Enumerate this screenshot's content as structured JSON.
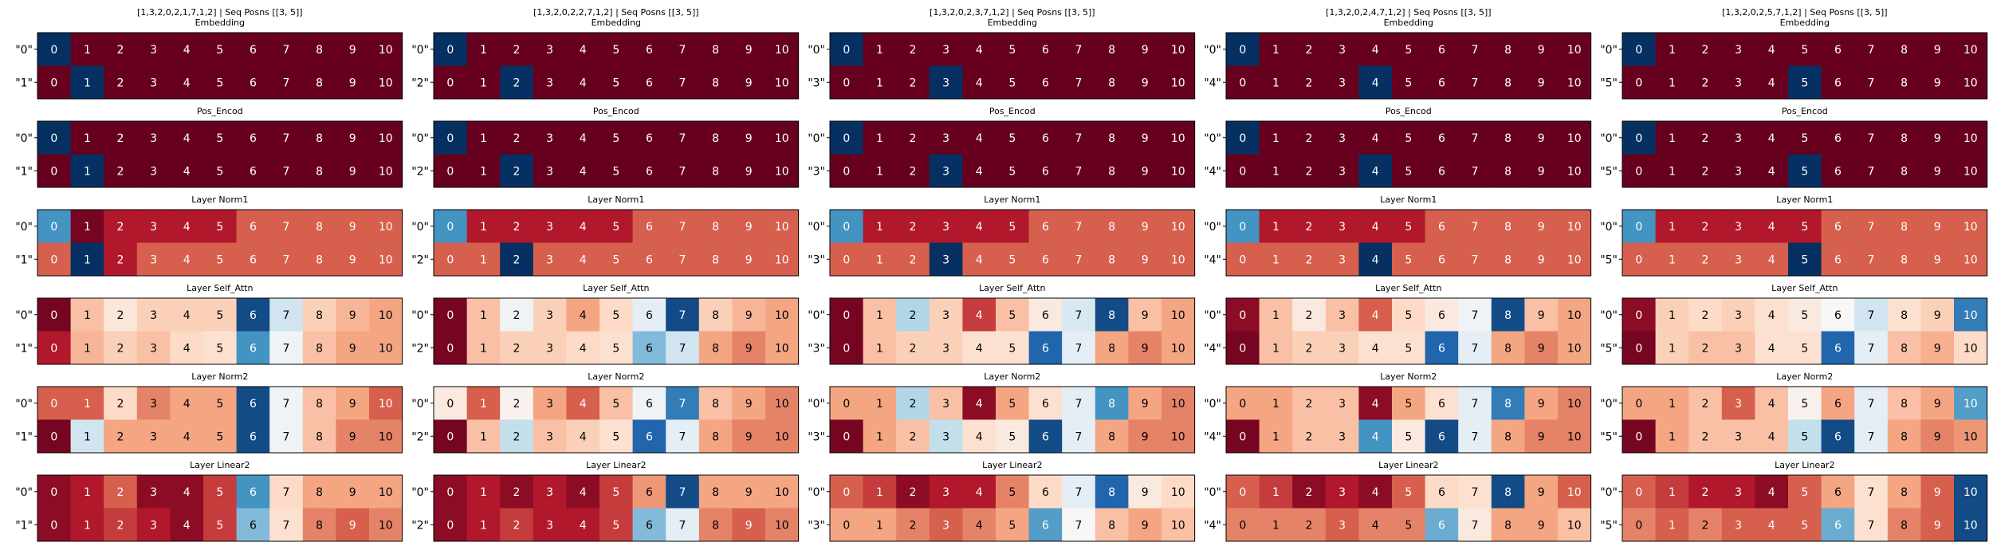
{
  "figure": {
    "layer_titles": [
      "Embedding",
      "Pos_Encod",
      "Layer Norm1",
      "Layer Self_Attn",
      "Layer Norm2",
      "Layer Linear2"
    ],
    "colormap": "RdBu",
    "colormap_stops": [
      "#67001f",
      "#b2182b",
      "#d6604d",
      "#f4a582",
      "#fddbc7",
      "#f7f7f7",
      "#d1e5f0",
      "#92c5de",
      "#4393c3",
      "#2166ac",
      "#053061"
    ]
  },
  "chart_data": [
    {
      "type": "heatmap",
      "title": "[1,3,2,0,2,1,7,1,2] | Seq Posns [[3, 5]]",
      "columns": [
        "0",
        "1",
        "2",
        "3",
        "4",
        "5",
        "6",
        "7",
        "8",
        "9",
        "10"
      ],
      "rows": [
        "\"0\"",
        "\"1\""
      ],
      "layers": [
        {
          "name": "Embedding",
          "values": [
            [
              1.0,
              0,
              0,
              0,
              0,
              0,
              0,
              0,
              0,
              0,
              0
            ],
            [
              0,
              1.0,
              0,
              0,
              0,
              0,
              0,
              0,
              0,
              0,
              0
            ]
          ]
        },
        {
          "name": "Pos_Encod",
          "values": [
            [
              1.0,
              0,
              0,
              0,
              0,
              0,
              0,
              0,
              0,
              0,
              0
            ],
            [
              0,
              1.0,
              0,
              0,
              0,
              0,
              0,
              0,
              0,
              0,
              0
            ]
          ]
        },
        {
          "name": "Layer Norm1",
          "values": [
            [
              0.8,
              0.02,
              0.1,
              0.1,
              0.1,
              0.1,
              0.2,
              0.2,
              0.2,
              0.2,
              0.2
            ],
            [
              0.2,
              1.0,
              0.1,
              0.2,
              0.2,
              0.2,
              0.2,
              0.2,
              0.2,
              0.2,
              0.2
            ]
          ]
        },
        {
          "name": "Layer Self_Attn",
          "values": [
            [
              0.02,
              0.35,
              0.44,
              0.38,
              0.38,
              0.38,
              0.95,
              0.6,
              0.38,
              0.33,
              0.3
            ],
            [
              0.1,
              0.33,
              0.38,
              0.35,
              0.4,
              0.42,
              0.8,
              0.52,
              0.35,
              0.3,
              0.3
            ]
          ]
        },
        {
          "name": "Layer Norm2",
          "values": [
            [
              0.2,
              0.2,
              0.4,
              0.25,
              0.3,
              0.3,
              0.95,
              0.52,
              0.35,
              0.3,
              0.2
            ],
            [
              0.02,
              0.6,
              0.3,
              0.3,
              0.3,
              0.3,
              0.95,
              0.52,
              0.35,
              0.25,
              0.25
            ]
          ]
        },
        {
          "name": "Layer Linear2",
          "values": [
            [
              0.05,
              0.1,
              0.2,
              0.05,
              0.05,
              0.15,
              0.8,
              0.4,
              0.3,
              0.3,
              0.3
            ],
            [
              0.05,
              0.1,
              0.15,
              0.1,
              0.05,
              0.15,
              0.72,
              0.42,
              0.25,
              0.2,
              0.25
            ]
          ]
        }
      ]
    },
    {
      "type": "heatmap",
      "title": "[1,3,2,0,2,2,7,1,2] | Seq Posns [[3, 5]]",
      "columns": [
        "0",
        "1",
        "2",
        "3",
        "4",
        "5",
        "6",
        "7",
        "8",
        "9",
        "10"
      ],
      "rows": [
        "\"0\"",
        "\"2\""
      ],
      "layers": [
        {
          "name": "Embedding",
          "values": [
            [
              1.0,
              0,
              0,
              0,
              0,
              0,
              0,
              0,
              0,
              0,
              0
            ],
            [
              0,
              0,
              1.0,
              0,
              0,
              0,
              0,
              0,
              0,
              0,
              0
            ]
          ]
        },
        {
          "name": "Pos_Encod",
          "values": [
            [
              1.0,
              0,
              0,
              0,
              0,
              0,
              0,
              0,
              0,
              0,
              0
            ],
            [
              0,
              0,
              1.0,
              0,
              0,
              0,
              0,
              0,
              0,
              0,
              0
            ]
          ]
        },
        {
          "name": "Layer Norm1",
          "values": [
            [
              0.8,
              0.1,
              0.1,
              0.1,
              0.1,
              0.1,
              0.2,
              0.2,
              0.2,
              0.2,
              0.2
            ],
            [
              0.2,
              0.2,
              1.0,
              0.2,
              0.2,
              0.2,
              0.2,
              0.2,
              0.2,
              0.2,
              0.2
            ]
          ]
        },
        {
          "name": "Layer Self_Attn",
          "values": [
            [
              0.02,
              0.35,
              0.52,
              0.38,
              0.3,
              0.4,
              0.55,
              0.95,
              0.38,
              0.33,
              0.3
            ],
            [
              0.02,
              0.35,
              0.38,
              0.38,
              0.4,
              0.42,
              0.72,
              0.6,
              0.3,
              0.25,
              0.3
            ]
          ]
        },
        {
          "name": "Layer Norm2",
          "values": [
            [
              0.45,
              0.2,
              0.48,
              0.3,
              0.2,
              0.35,
              0.52,
              0.85,
              0.35,
              0.3,
              0.25
            ],
            [
              0.02,
              0.35,
              0.62,
              0.35,
              0.38,
              0.42,
              0.9,
              0.55,
              0.3,
              0.25,
              0.25
            ]
          ]
        },
        {
          "name": "Layer Linear2",
          "values": [
            [
              0.05,
              0.1,
              0.05,
              0.1,
              0.05,
              0.15,
              0.28,
              0.95,
              0.3,
              0.3,
              0.3
            ],
            [
              0.05,
              0.1,
              0.15,
              0.1,
              0.1,
              0.15,
              0.72,
              0.55,
              0.25,
              0.2,
              0.25
            ]
          ]
        }
      ]
    },
    {
      "type": "heatmap",
      "title": "[1,3,2,0,2,3,7,1,2] | Seq Posns [[3, 5]]",
      "columns": [
        "0",
        "1",
        "2",
        "3",
        "4",
        "5",
        "6",
        "7",
        "8",
        "9",
        "10"
      ],
      "rows": [
        "\"0\"",
        "\"3\""
      ],
      "layers": [
        {
          "name": "Embedding",
          "values": [
            [
              1.0,
              0,
              0,
              0,
              0,
              0,
              0,
              0,
              0,
              0,
              0
            ],
            [
              0,
              0,
              0,
              1.0,
              0,
              0,
              0,
              0,
              0,
              0,
              0
            ]
          ]
        },
        {
          "name": "Pos_Encod",
          "values": [
            [
              1.0,
              0,
              0,
              0,
              0,
              0,
              0,
              0,
              0,
              0,
              0
            ],
            [
              0,
              0,
              0,
              1.0,
              0,
              0,
              0,
              0,
              0,
              0,
              0
            ]
          ]
        },
        {
          "name": "Layer Norm1",
          "values": [
            [
              0.8,
              0.1,
              0.1,
              0.1,
              0.1,
              0.1,
              0.2,
              0.2,
              0.2,
              0.2,
              0.2
            ],
            [
              0.2,
              0.2,
              0.2,
              1.0,
              0.2,
              0.2,
              0.2,
              0.2,
              0.2,
              0.2,
              0.2
            ]
          ]
        },
        {
          "name": "Layer Self_Attn",
          "values": [
            [
              0.02,
              0.35,
              0.65,
              0.38,
              0.15,
              0.35,
              0.45,
              0.58,
              0.95,
              0.35,
              0.3
            ],
            [
              0.02,
              0.35,
              0.38,
              0.38,
              0.42,
              0.42,
              0.9,
              0.55,
              0.3,
              0.25,
              0.3
            ]
          ]
        },
        {
          "name": "Layer Norm2",
          "values": [
            [
              0.3,
              0.3,
              0.65,
              0.35,
              0.05,
              0.3,
              0.42,
              0.55,
              0.8,
              0.3,
              0.25
            ],
            [
              0.02,
              0.3,
              0.35,
              0.62,
              0.42,
              0.45,
              0.95,
              0.55,
              0.3,
              0.25,
              0.25
            ]
          ]
        },
        {
          "name": "Layer Linear2",
          "values": [
            [
              0.2,
              0.15,
              0.05,
              0.1,
              0.1,
              0.25,
              0.4,
              0.55,
              0.9,
              0.45,
              0.4
            ],
            [
              0.3,
              0.3,
              0.25,
              0.2,
              0.25,
              0.3,
              0.78,
              0.5,
              0.35,
              0.3,
              0.35
            ]
          ]
        }
      ]
    },
    {
      "type": "heatmap",
      "title": "[1,3,2,0,2,4,7,1,2] | Seq Posns [[3, 5]]",
      "columns": [
        "0",
        "1",
        "2",
        "3",
        "4",
        "5",
        "6",
        "7",
        "8",
        "9",
        "10"
      ],
      "rows": [
        "\"0\"",
        "\"4\""
      ],
      "layers": [
        {
          "name": "Embedding",
          "values": [
            [
              1.0,
              0,
              0,
              0,
              0,
              0,
              0,
              0,
              0,
              0,
              0
            ],
            [
              0,
              0,
              0,
              0,
              1.0,
              0,
              0,
              0,
              0,
              0,
              0
            ]
          ]
        },
        {
          "name": "Pos_Encod",
          "values": [
            [
              1.0,
              0,
              0,
              0,
              0,
              0,
              0,
              0,
              0,
              0,
              0
            ],
            [
              0,
              0,
              0,
              0,
              1.0,
              0,
              0,
              0,
              0,
              0,
              0
            ]
          ]
        },
        {
          "name": "Layer Norm1",
          "values": [
            [
              0.8,
              0.1,
              0.1,
              0.1,
              0.1,
              0.1,
              0.2,
              0.2,
              0.2,
              0.2,
              0.2
            ],
            [
              0.2,
              0.2,
              0.2,
              0.2,
              1.0,
              0.2,
              0.2,
              0.2,
              0.2,
              0.2,
              0.2
            ]
          ]
        },
        {
          "name": "Layer Self_Attn",
          "values": [
            [
              0.05,
              0.35,
              0.45,
              0.35,
              0.2,
              0.4,
              0.45,
              0.52,
              0.95,
              0.35,
              0.3
            ],
            [
              0.02,
              0.35,
              0.38,
              0.38,
              0.42,
              0.42,
              0.9,
              0.55,
              0.3,
              0.25,
              0.3
            ]
          ]
        },
        {
          "name": "Layer Norm2",
          "values": [
            [
              0.3,
              0.3,
              0.35,
              0.35,
              0.05,
              0.3,
              0.42,
              0.55,
              0.85,
              0.3,
              0.25
            ],
            [
              0.02,
              0.3,
              0.35,
              0.35,
              0.8,
              0.45,
              0.95,
              0.55,
              0.3,
              0.25,
              0.25
            ]
          ]
        },
        {
          "name": "Layer Linear2",
          "values": [
            [
              0.2,
              0.15,
              0.05,
              0.1,
              0.05,
              0.2,
              0.4,
              0.42,
              0.95,
              0.3,
              0.2
            ],
            [
              0.25,
              0.25,
              0.25,
              0.2,
              0.25,
              0.25,
              0.75,
              0.45,
              0.3,
              0.3,
              0.35
            ]
          ]
        }
      ]
    },
    {
      "type": "heatmap",
      "title": "[1,3,2,0,2,5,7,1,2] | Seq Posns [[3, 5]]",
      "columns": [
        "0",
        "1",
        "2",
        "3",
        "4",
        "5",
        "6",
        "7",
        "8",
        "9",
        "10"
      ],
      "rows": [
        "\"0\"",
        "\"5\""
      ],
      "layers": [
        {
          "name": "Embedding",
          "values": [
            [
              1.0,
              0,
              0,
              0,
              0,
              0,
              0,
              0,
              0,
              0,
              0
            ],
            [
              0,
              0,
              0,
              0,
              0,
              1.0,
              0,
              0,
              0,
              0,
              0
            ]
          ]
        },
        {
          "name": "Pos_Encod",
          "values": [
            [
              1.0,
              0,
              0,
              0,
              0,
              0,
              0,
              0,
              0,
              0,
              0
            ],
            [
              0,
              0,
              0,
              0,
              0,
              1.0,
              0,
              0,
              0,
              0,
              0
            ]
          ]
        },
        {
          "name": "Layer Norm1",
          "values": [
            [
              0.8,
              0.1,
              0.1,
              0.1,
              0.1,
              0.1,
              0.2,
              0.2,
              0.2,
              0.2,
              0.2
            ],
            [
              0.2,
              0.2,
              0.2,
              0.2,
              0.2,
              1.0,
              0.2,
              0.2,
              0.2,
              0.2,
              0.2
            ]
          ]
        },
        {
          "name": "Layer Self_Attn",
          "values": [
            [
              0.05,
              0.38,
              0.4,
              0.38,
              0.42,
              0.45,
              0.5,
              0.6,
              0.42,
              0.38,
              0.85
            ],
            [
              0.02,
              0.38,
              0.35,
              0.35,
              0.42,
              0.42,
              0.9,
              0.55,
              0.35,
              0.32,
              0.4
            ]
          ]
        },
        {
          "name": "Layer Norm2",
          "values": [
            [
              0.3,
              0.3,
              0.35,
              0.2,
              0.35,
              0.48,
              0.3,
              0.55,
              0.35,
              0.3,
              0.78
            ],
            [
              0.02,
              0.3,
              0.35,
              0.35,
              0.35,
              0.62,
              0.95,
              0.55,
              0.3,
              0.25,
              0.28
            ]
          ]
        },
        {
          "name": "Layer Linear2",
          "values": [
            [
              0.2,
              0.15,
              0.1,
              0.1,
              0.05,
              0.2,
              0.3,
              0.42,
              0.3,
              0.2,
              0.95
            ],
            [
              0.25,
              0.2,
              0.25,
              0.2,
              0.2,
              0.2,
              0.75,
              0.42,
              0.25,
              0.2,
              0.95
            ]
          ]
        }
      ]
    }
  ]
}
